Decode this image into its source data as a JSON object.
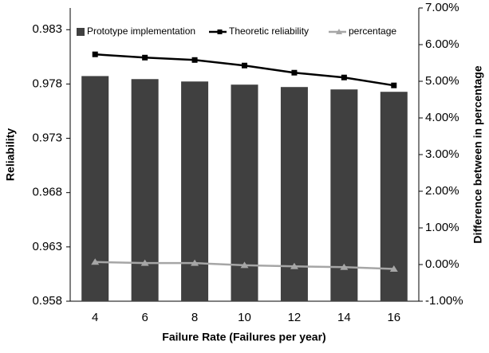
{
  "chart_data": {
    "type": "bar_line",
    "x_label": "Failure Rate (Failures per year)",
    "y_label": "Reliability",
    "y2_label": "Difference between in percentage",
    "categories": [
      "4",
      "6",
      "8",
      "10",
      "12",
      "14",
      "16"
    ],
    "series": [
      {
        "name": "Prototype implementation",
        "type": "bar",
        "color": "#404040",
        "values": [
          0.97873,
          0.97845,
          0.97823,
          0.97794,
          0.97772,
          0.9775,
          0.97728
        ]
      },
      {
        "name": "Theoretic reliability",
        "type": "line",
        "color": "#000000",
        "marker": "square",
        "values": [
          0.98073,
          0.98043,
          0.98021,
          0.9797,
          0.97904,
          0.9786,
          0.97787
        ]
      },
      {
        "name": "percentage",
        "type": "line",
        "color": "#a6a6a6",
        "marker": "triangle",
        "axis": "y2",
        "values": [
          0.07,
          0.04,
          0.04,
          -0.02,
          -0.05,
          -0.07,
          -0.12
        ]
      }
    ],
    "ylim": [
      0.958,
      0.985
    ],
    "yticks": [
      0.958,
      0.963,
      0.968,
      0.973,
      0.978,
      0.983
    ],
    "y2lim": [
      -1,
      7
    ],
    "y2ticks": [
      {
        "value": -1,
        "label": "-1.00%"
      },
      {
        "value": 0,
        "label": "0.00%"
      },
      {
        "value": 1,
        "label": "1.00%"
      },
      {
        "value": 2,
        "label": "2.00%"
      },
      {
        "value": 3,
        "label": "3.00%"
      },
      {
        "value": 4,
        "label": "4.00%"
      },
      {
        "value": 5,
        "label": "5.00%"
      },
      {
        "value": 6,
        "label": "6.00%"
      },
      {
        "value": 7,
        "label": "7.00%"
      }
    ],
    "legend": "top"
  }
}
